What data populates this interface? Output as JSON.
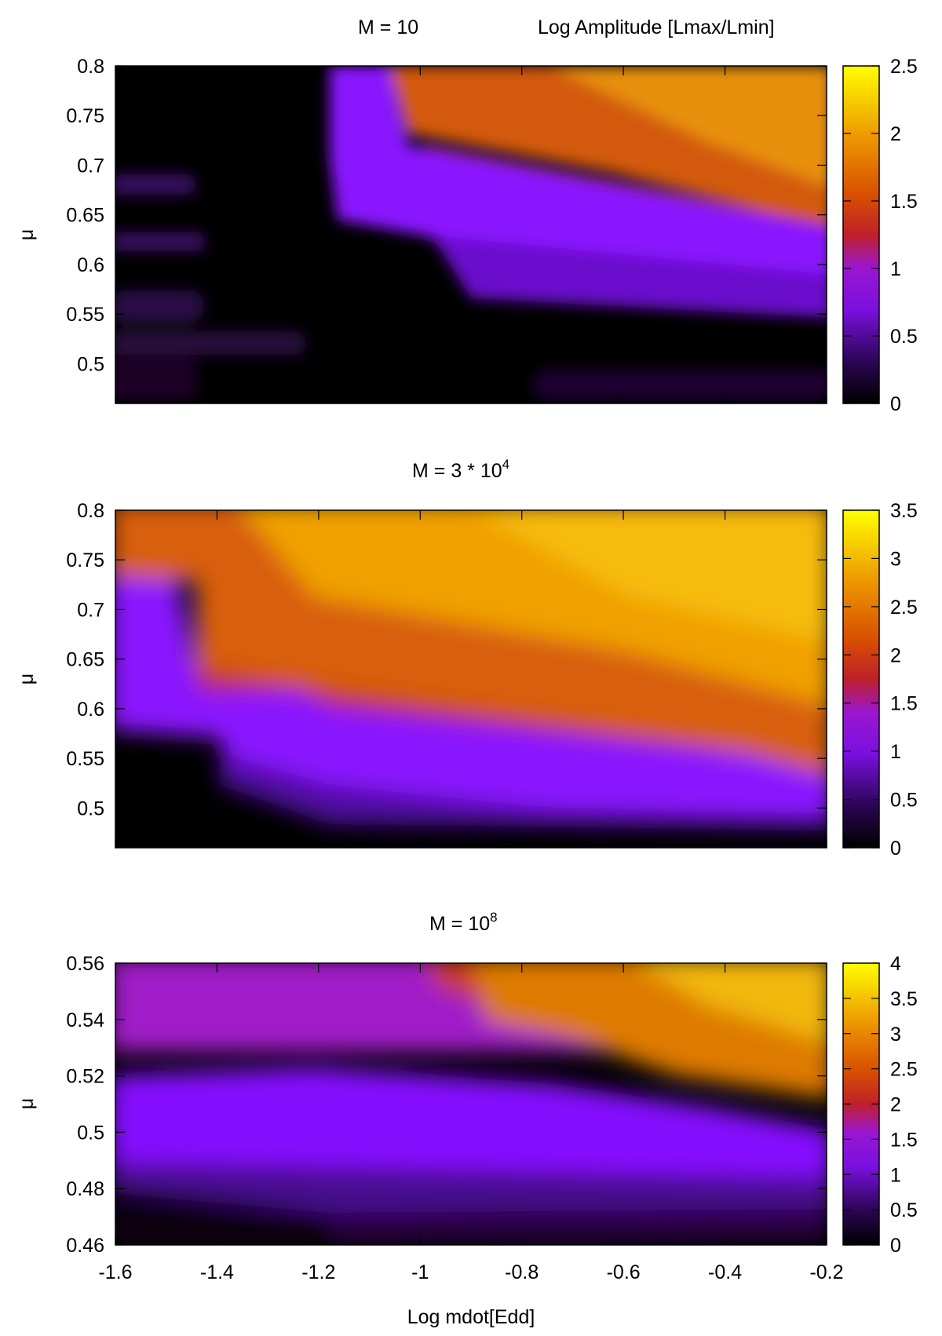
{
  "chart_data": [
    {
      "type": "heatmap",
      "title": "M = 10",
      "colorbar_title": "Log Amplitude [Lmax/Lmin]",
      "ylabel": "μ",
      "xlabel": "",
      "xlim": [
        -1.6,
        -0.2
      ],
      "ylim": [
        0.46,
        0.8
      ],
      "y_ticks": [
        "0.5",
        "0.55",
        "0.6",
        "0.65",
        "0.7",
        "0.75",
        "0.8"
      ],
      "x_ticks": [],
      "colorbar_range": [
        0,
        2.5
      ],
      "colorbar_ticks": [
        "0",
        "0.5",
        "1",
        "1.5",
        "2",
        "2.5"
      ],
      "colormap": [
        "#000000",
        "#3a0a6e",
        "#8b10ff",
        "#c01a3a",
        "#d35500",
        "#ee9a00",
        "#ffff00"
      ],
      "regions": [
        {
          "x": [
            -1.6,
            -1.2
          ],
          "y": [
            0.46,
            0.8
          ],
          "value": 0.1
        },
        {
          "x": [
            -1.2,
            -1.05
          ],
          "y": [
            0.64,
            0.8
          ],
          "value": 0.8
        },
        {
          "x": [
            -1.05,
            -0.2
          ],
          "y": [
            0.68,
            0.8
          ],
          "value": 1.9
        },
        {
          "x": [
            -1.05,
            -0.2
          ],
          "y": [
            0.55,
            0.66
          ],
          "value": 0.8
        },
        {
          "x": [
            -1.05,
            -0.2
          ],
          "y": [
            0.46,
            0.55
          ],
          "value": 0.05
        }
      ]
    },
    {
      "type": "heatmap",
      "title": "M = 3 * 10",
      "title_sup": "4",
      "ylabel": "μ",
      "xlabel": "",
      "xlim": [
        -1.6,
        -0.2
      ],
      "ylim": [
        0.46,
        0.8
      ],
      "y_ticks": [
        "0.5",
        "0.55",
        "0.6",
        "0.65",
        "0.7",
        "0.75",
        "0.8"
      ],
      "x_ticks": [],
      "colorbar_range": [
        0,
        3.5
      ],
      "colorbar_ticks": [
        "0",
        "0.5",
        "1",
        "1.5",
        "2",
        "2.5",
        "3",
        "3.5"
      ],
      "colormap": [
        "#000000",
        "#3a0a6e",
        "#8b10ff",
        "#c01a3a",
        "#d35500",
        "#ee9a00",
        "#ffff00"
      ],
      "regions": [
        {
          "x": [
            -1.6,
            -0.2
          ],
          "y": [
            0.62,
            0.8
          ],
          "value": 2.8
        },
        {
          "x": [
            -1.6,
            -1.45
          ],
          "y": [
            0.6,
            0.73
          ],
          "value": 1.0
        },
        {
          "x": [
            -1.4,
            -0.2
          ],
          "y": [
            0.5,
            0.6
          ],
          "value": 1.0
        },
        {
          "x": [
            -1.6,
            -0.2
          ],
          "y": [
            0.46,
            0.5
          ],
          "value": 0.05
        }
      ]
    },
    {
      "type": "heatmap",
      "title": "M = 10",
      "title_sup": "8",
      "ylabel": "μ",
      "xlabel": "Log mdot[Edd]",
      "xlim": [
        -1.6,
        -0.2
      ],
      "ylim": [
        0.46,
        0.56
      ],
      "y_ticks": [
        "0.46",
        "0.48",
        "0.5",
        "0.52",
        "0.54",
        "0.56"
      ],
      "x_ticks": [
        "-1.6",
        "-1.4",
        "-1.2",
        "-1",
        "-0.8",
        "-0.6",
        "-0.4",
        "-0.2"
      ],
      "colorbar_range": [
        0,
        4
      ],
      "colorbar_ticks": [
        "0",
        "0.5",
        "1",
        "1.5",
        "2",
        "2.5",
        "3",
        "3.5",
        "4"
      ],
      "colormap": [
        "#000000",
        "#3a0a6e",
        "#8b10ff",
        "#c01a3a",
        "#d35500",
        "#ee9a00",
        "#ffff00"
      ],
      "regions": [
        {
          "x": [
            -1.6,
            -0.2
          ],
          "y": [
            0.52,
            0.56
          ],
          "value": 1.6
        },
        {
          "x": [
            -0.95,
            -0.2
          ],
          "y": [
            0.5,
            0.56
          ],
          "value": 3.0
        },
        {
          "x": [
            -1.6,
            -0.2
          ],
          "y": [
            0.48,
            0.52
          ],
          "value": 1.0
        },
        {
          "x": [
            -1.6,
            -0.2
          ],
          "y": [
            0.46,
            0.47
          ],
          "value": 0.05
        }
      ]
    }
  ]
}
